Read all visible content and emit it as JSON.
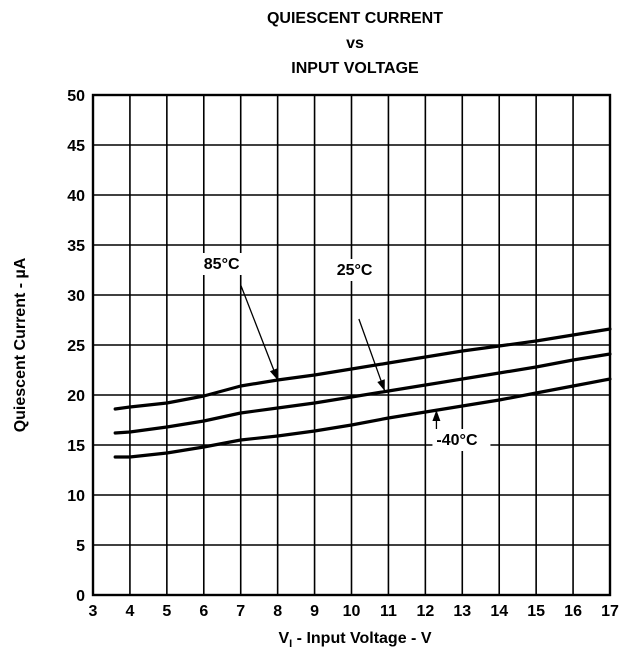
{
  "chart_data": {
    "type": "line",
    "title_lines": [
      "QUIESCENT CURRENT",
      "vs",
      "INPUT VOLTAGE"
    ],
    "xlabel_main": "V",
    "xlabel_sub": "I",
    "xlabel_rest": " - Input Voltage - V",
    "ylabel": "Quiescent Current - µA",
    "xlim": [
      3,
      17
    ],
    "ylim": [
      0,
      50
    ],
    "xticks": [
      3,
      4,
      5,
      6,
      7,
      8,
      9,
      10,
      11,
      12,
      13,
      14,
      15,
      16,
      17
    ],
    "yticks": [
      0,
      5,
      10,
      15,
      20,
      25,
      30,
      35,
      40,
      45,
      50
    ],
    "grid": true,
    "series": [
      {
        "name": "85°C",
        "x": [
          3.6,
          4,
          5,
          6,
          7,
          8,
          9,
          10,
          11,
          12,
          13,
          14,
          15,
          16,
          17
        ],
        "y": [
          18.6,
          18.8,
          19.2,
          19.9,
          20.9,
          21.5,
          22.0,
          22.6,
          23.2,
          23.8,
          24.4,
          24.9,
          25.4,
          26.0,
          26.6
        ]
      },
      {
        "name": "25°C",
        "x": [
          3.6,
          4,
          5,
          6,
          7,
          8,
          9,
          10,
          11,
          12,
          13,
          14,
          15,
          16,
          17
        ],
        "y": [
          16.2,
          16.3,
          16.8,
          17.4,
          18.2,
          18.7,
          19.2,
          19.8,
          20.4,
          21.0,
          21.6,
          22.2,
          22.8,
          23.5,
          24.1
        ]
      },
      {
        "name": "-40°C",
        "x": [
          3.6,
          4,
          5,
          6,
          7,
          8,
          9,
          10,
          11,
          12,
          13,
          14,
          15,
          16,
          17
        ],
        "y": [
          13.8,
          13.8,
          14.2,
          14.8,
          15.5,
          15.9,
          16.4,
          17.0,
          17.7,
          18.3,
          18.9,
          19.5,
          20.2,
          20.9,
          21.6
        ]
      }
    ],
    "annotations": [
      {
        "text": "85°C",
        "series": 0,
        "label_x": 6.0,
        "label_y": 32.6,
        "target_x": 8.0,
        "target_y": 21.5,
        "start_x": 7.0,
        "start_y": 31.0
      },
      {
        "text": "25°C",
        "series": 1,
        "label_x": 9.6,
        "label_y": 32.0,
        "target_x": 10.9,
        "target_y": 20.4,
        "start_x": 10.2,
        "start_y": 27.6
      },
      {
        "text": "-40°C",
        "series": 2,
        "label_x": 12.3,
        "label_y": 15.0,
        "target_x": 12.3,
        "target_y": 18.5,
        "start_x": 12.3,
        "start_y": 16.6
      }
    ]
  }
}
